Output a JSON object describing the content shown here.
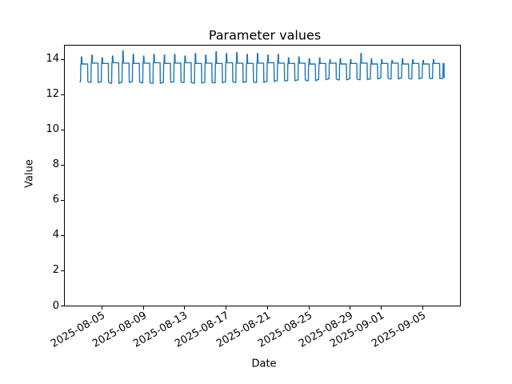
{
  "figure": {
    "background": "#ffffff"
  },
  "chart_data": {
    "type": "line",
    "title": "Parameter values",
    "xlabel": "Date",
    "ylabel": "Value",
    "grid": false,
    "legend": "none",
    "line_color": "#1f77b4",
    "line_width": 1.4,
    "axis_color": "#000000",
    "ylim": [
      0,
      14.84
    ],
    "y_ticks": [
      0,
      2,
      4,
      6,
      8,
      10,
      12,
      14
    ],
    "xlim": [
      "2025-08-01T09:00",
      "2025-09-08T16:00"
    ],
    "x_ticks": [
      "2025-08-05",
      "2025-08-09",
      "2025-08-13",
      "2025-08-17",
      "2025-08-21",
      "2025-08-25",
      "2025-08-29",
      "2025-09-01",
      "2025-09-05"
    ],
    "series": [
      {
        "name": "parameter-values",
        "start": "2025-08-02T20:00",
        "cycle_hours": 24,
        "cycle_template_hours": [
          [
            0.0,
            "low"
          ],
          [
            2.5,
            "low"
          ],
          [
            3.1,
            "high"
          ],
          [
            4.0,
            "high"
          ],
          [
            4.4,
            "peak"
          ],
          [
            5.4,
            "peak"
          ],
          [
            5.9,
            "high"
          ],
          [
            18.8,
            "high"
          ],
          [
            19.4,
            "low"
          ]
        ],
        "days": {
          "lows": [
            12.75,
            12.7,
            12.72,
            12.65,
            12.7,
            12.74,
            12.68,
            12.65,
            12.7,
            12.73,
            12.7,
            12.66,
            12.7,
            12.68,
            12.74,
            12.7,
            12.73,
            12.7,
            12.76,
            12.8,
            12.8,
            12.84,
            12.8,
            12.86,
            12.9,
            12.85,
            12.9,
            12.86,
            12.9,
            12.94,
            12.9,
            12.95,
            12.9,
            12.95,
            12.92
          ],
          "highs": [
            13.75,
            13.8,
            13.78,
            13.82,
            13.8,
            13.78,
            13.8,
            13.82,
            13.78,
            13.8,
            13.82,
            13.78,
            13.8,
            13.78,
            13.82,
            13.8,
            13.78,
            13.8,
            13.82,
            13.8,
            13.78,
            13.8,
            13.75,
            13.78,
            13.8,
            13.75,
            13.78,
            13.8,
            13.75,
            13.78,
            13.8,
            13.75,
            13.78,
            13.75,
            13.78
          ],
          "peaks": [
            14.15,
            14.25,
            14.1,
            14.2,
            14.5,
            14.3,
            14.2,
            14.3,
            14.25,
            14.3,
            14.2,
            14.35,
            14.25,
            14.45,
            14.35,
            14.4,
            14.3,
            14.35,
            14.25,
            14.3,
            14.1,
            14.15,
            14.05,
            14.1,
            14.0,
            14.05,
            14.0,
            14.35,
            14.05,
            14.0,
            13.95,
            14.05,
            14.0,
            13.95,
            14.0
          ]
        },
        "tail_hours": [
          [
            0.0,
            "low"
          ],
          [
            2.5,
            "low"
          ],
          [
            3.1,
            "high"
          ],
          [
            5.0,
            "high"
          ],
          [
            5.5,
            "end"
          ],
          [
            7.0,
            "end"
          ]
        ],
        "tail_end_value": 13.0
      }
    ]
  }
}
